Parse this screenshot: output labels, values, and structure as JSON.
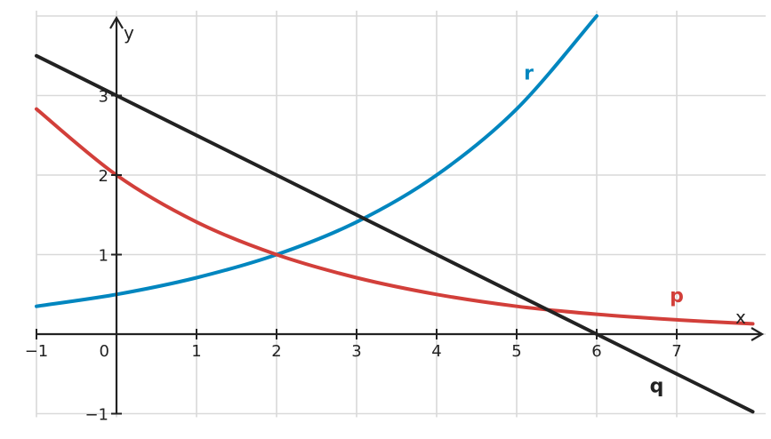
{
  "chart_data": {
    "type": "line",
    "xlabel": "x",
    "ylabel": "y",
    "xlim": [
      -1,
      7.95
    ],
    "ylim": [
      -1,
      4.0
    ],
    "xticks": [
      -1,
      0,
      1,
      2,
      3,
      4,
      5,
      6,
      7
    ],
    "yticks": [
      -1,
      1,
      2,
      3
    ],
    "grid": true,
    "series": [
      {
        "name": "r",
        "color": "#0086bf",
        "label_at": [
          5.15,
          3.2
        ],
        "x": [
          -1,
          0,
          1,
          2,
          3,
          4,
          5,
          6
        ],
        "y": [
          0.35,
          0.5,
          0.71,
          1.0,
          1.41,
          2.0,
          2.83,
          4.0
        ]
      },
      {
        "name": "p",
        "color": "#d23f3a",
        "label_at": [
          7.0,
          0.4
        ],
        "x": [
          -1,
          0,
          1,
          2,
          3,
          4,
          5,
          6,
          7,
          7.95
        ],
        "y": [
          2.83,
          2.0,
          1.41,
          1.0,
          0.71,
          0.5,
          0.35,
          0.25,
          0.18,
          0.13
        ]
      },
      {
        "name": "q",
        "color": "#222222",
        "label_at": [
          6.75,
          -0.73
        ],
        "x": [
          -1,
          0,
          1,
          2,
          3,
          4,
          5,
          6,
          7,
          7.95
        ],
        "y": [
          3.5,
          3.0,
          2.5,
          2.0,
          1.5,
          1.0,
          0.5,
          0.0,
          -0.5,
          -0.975
        ]
      }
    ]
  }
}
